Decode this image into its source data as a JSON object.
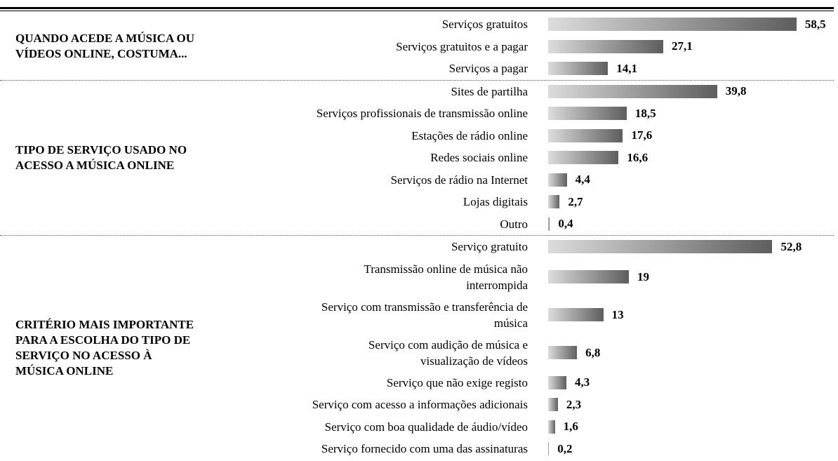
{
  "chart_data": [
    {
      "type": "bar",
      "title": "QUANDO ACEDE A MÚSICA OU VÍDEOS ONLINE, COSTUMA...",
      "categories": [
        "Serviços gratuitos",
        "Serviços gratuitos e a pagar",
        "Serviços a pagar"
      ],
      "values": [
        58.5,
        27.1,
        14.1
      ],
      "value_labels": [
        "58,5",
        "27,1",
        "14,1"
      ]
    },
    {
      "type": "bar",
      "title": "TIPO DE SERVIÇO USADO NO ACESSO A MÚSICA ONLINE",
      "categories": [
        "Sites de partilha",
        "Serviços profissionais de transmissão online",
        "Estações de rádio online",
        "Redes sociais online",
        "Serviços de rádio na Internet",
        "Lojas digitais",
        "Outro"
      ],
      "values": [
        39.8,
        18.5,
        17.6,
        16.6,
        4.4,
        2.7,
        0.4
      ],
      "value_labels": [
        "39,8",
        "18,5",
        "17,6",
        "16,6",
        "4,4",
        "2,7",
        "0,4"
      ]
    },
    {
      "type": "bar",
      "title": "CRITÉRIO MAIS IMPORTANTE PARA A ESCOLHA DO TIPO DE SERVIÇO NO ACESSO À MÚSICA ONLINE",
      "categories": [
        "Serviço gratuito",
        "Transmissão online de música não\ninterrompida",
        "Serviço com transmissão e transferência de\nmúsica",
        "Serviço com audição de música e\nvisualização de vídeos",
        "Serviço que não exige registo",
        "Serviço com acesso a informações adicionais",
        "Serviço com boa qualidade de áudio/vídeo",
        "Serviço fornecido com uma das assinaturas"
      ],
      "values": [
        52.8,
        19,
        13,
        6.8,
        4.3,
        2.3,
        1.6,
        0.2
      ],
      "value_labels": [
        "52,8",
        "19",
        "13",
        "6,8",
        "4,3",
        "2,3",
        "1,6",
        "0,2"
      ]
    }
  ]
}
